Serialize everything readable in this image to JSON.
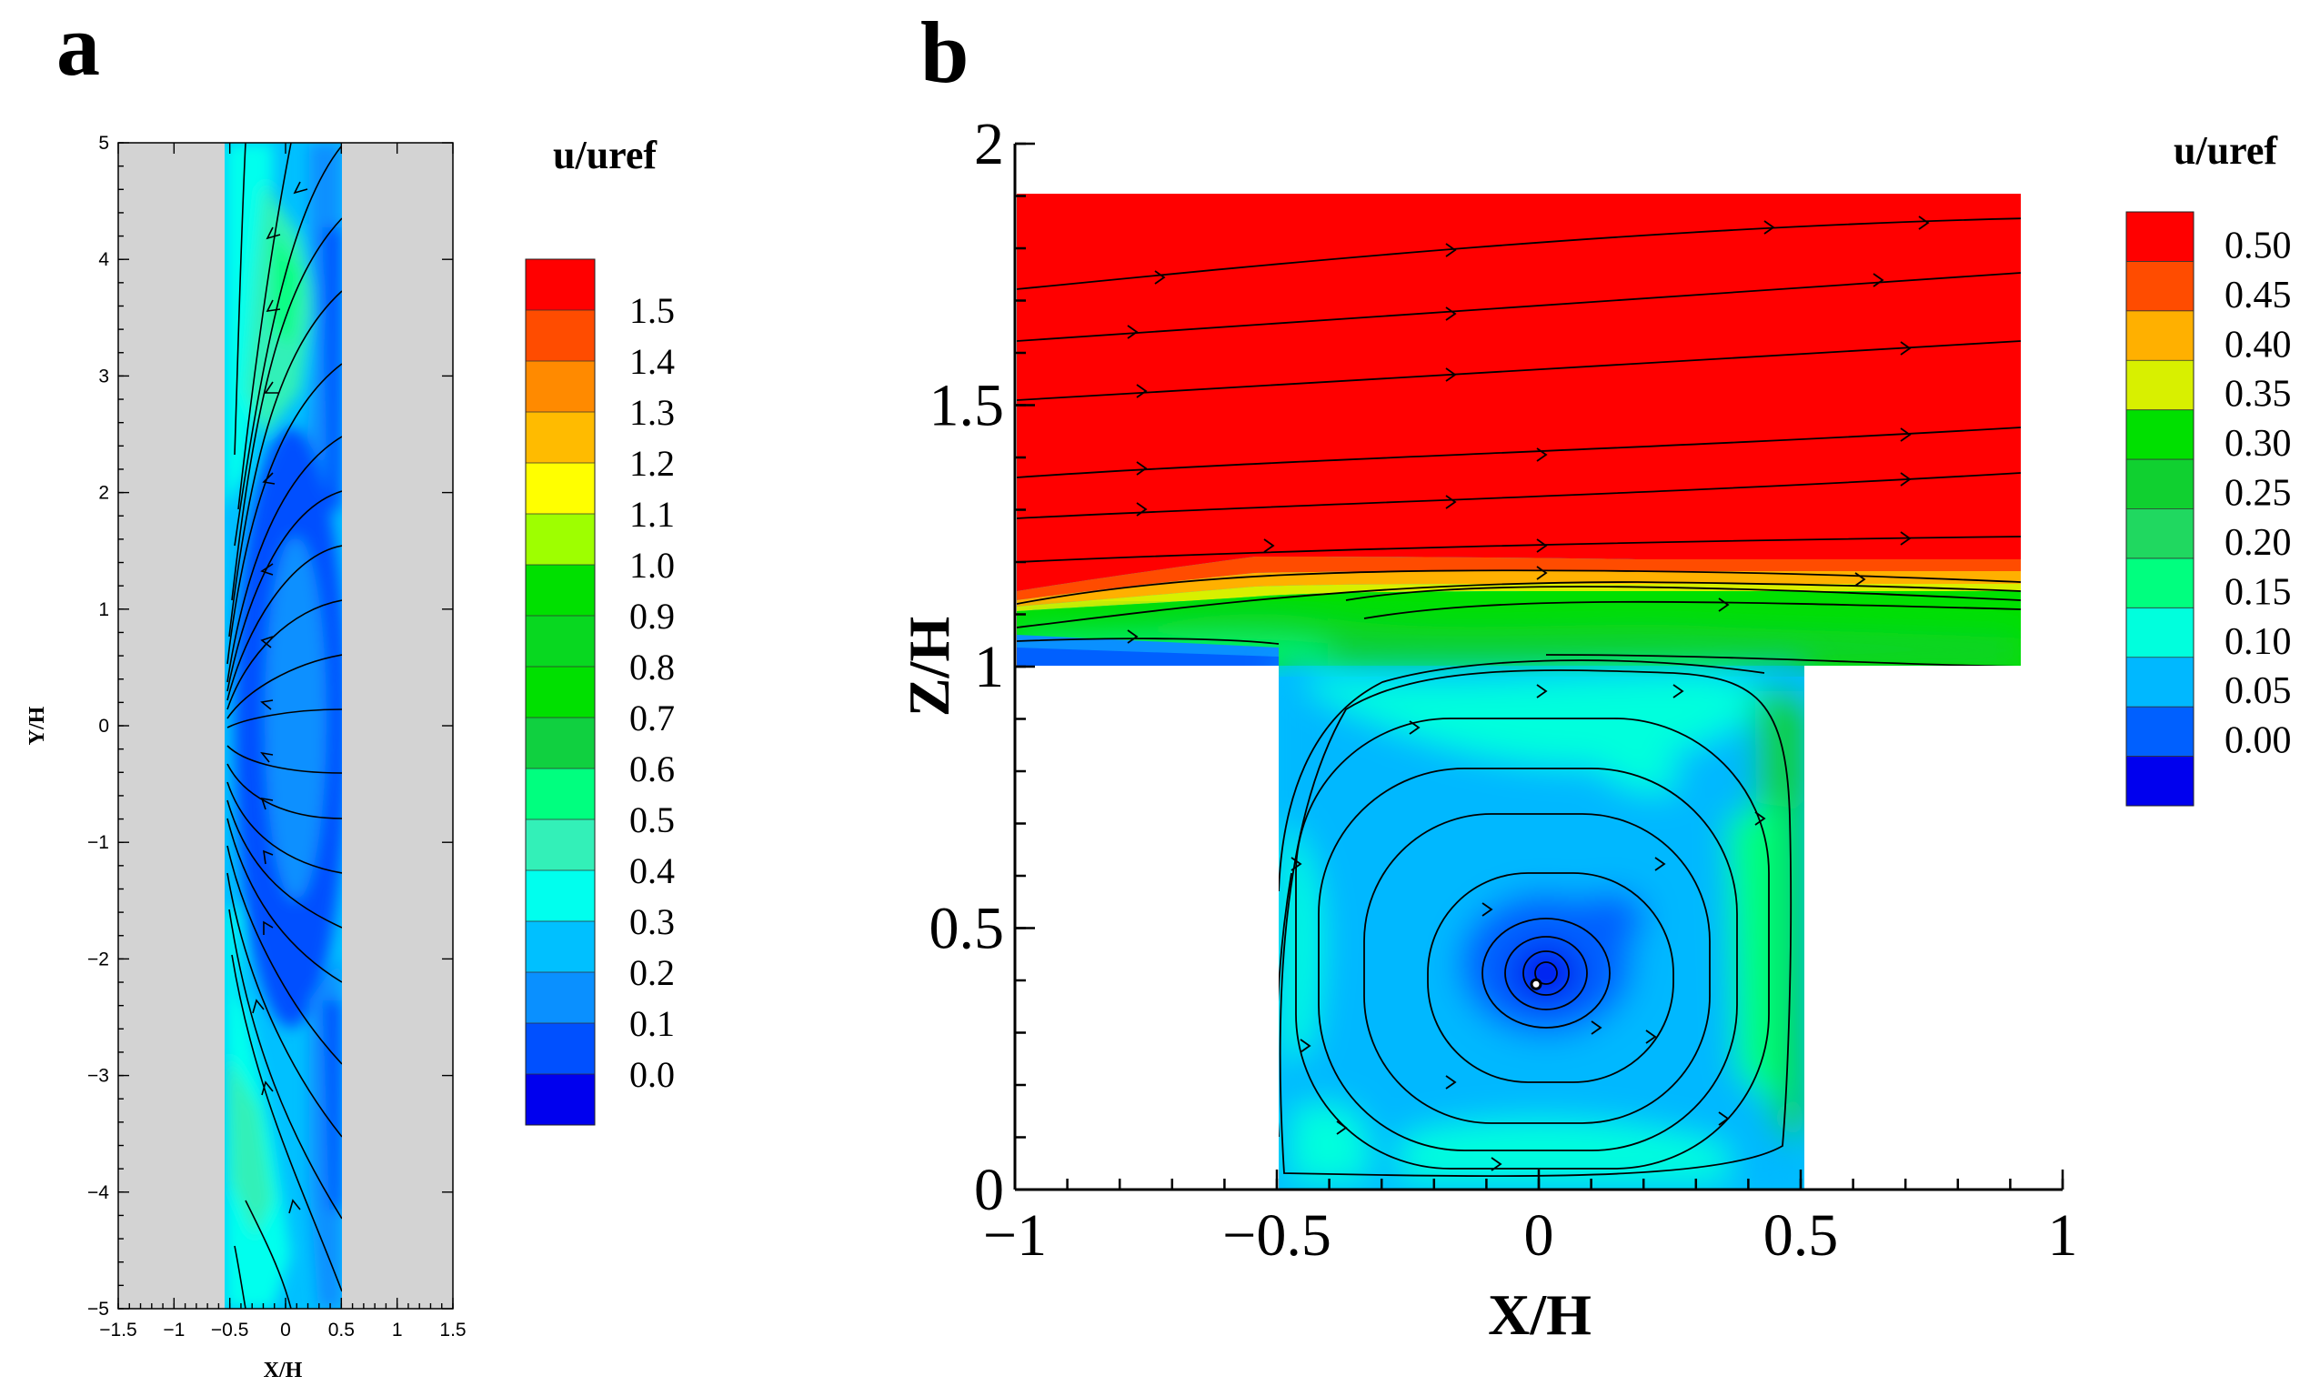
{
  "colors": {
    "red": "#ff0000",
    "orange_red": "#ff4c00",
    "orange": "#ff8a00",
    "amber": "#ffbb00",
    "yellow": "#ffff00",
    "yellow_green": "#9eff00",
    "green": "#00e000",
    "green_mid": "#10d040",
    "aqua_green": "#00ff7f",
    "aquamarine": "#33f0b8",
    "cyan": "#00ffee",
    "sky_blue": "#00c0ff",
    "blue_light": "#0a90ff",
    "blue": "#0050ff",
    "blue_dark": "#0000ee",
    "gray_wall": "#d3d3d3",
    "stream": "#000000"
  },
  "chart_data": [
    {
      "panel": "a",
      "type": "heatmap",
      "title": "",
      "xlabel": "X/H",
      "ylabel": "Y/H",
      "xlim": [
        -1.5,
        1.5
      ],
      "ylim": [
        -5,
        5
      ],
      "x_ticks": [
        "−1.5",
        "−1",
        "−0.5",
        "0",
        "0.5",
        "1",
        "1.5"
      ],
      "x_tick_values": [
        -1.5,
        -1,
        -0.5,
        0,
        0.5,
        1,
        1.5
      ],
      "y_ticks": [
        "−5",
        "−4",
        "−3",
        "−2",
        "−1",
        "0",
        "1",
        "2",
        "3",
        "4",
        "5"
      ],
      "y_tick_values": [
        -5,
        -4,
        -3,
        -2,
        -1,
        0,
        1,
        2,
        3,
        4,
        5
      ],
      "channel_x_range": [
        -0.5,
        0.5
      ],
      "colorbar": {
        "title": "u/uref",
        "labels": [
          "1.5",
          "1.4",
          "1.3",
          "1.2",
          "1.1",
          "1.0",
          "0.9",
          "0.8",
          "0.7",
          "0.6",
          "0.5",
          "0.4",
          "0.3",
          "0.2",
          "0.1",
          "0.0"
        ],
        "levels": [
          1.6,
          1.5,
          1.4,
          1.3,
          1.2,
          1.1,
          1.0,
          0.9,
          0.8,
          0.7,
          0.6,
          0.5,
          0.4,
          0.3,
          0.2,
          0.1,
          0.0
        ],
        "colors": [
          "#ff0000",
          "#ff4c00",
          "#ff8a00",
          "#ffbb00",
          "#ffff00",
          "#9eff00",
          "#00e000",
          "#08d820",
          "#00e000",
          "#10d040",
          "#00ff7f",
          "#33f0b8",
          "#00ffee",
          "#00c0ff",
          "#0a90ff",
          "#0050ff",
          "#0000ee"
        ]
      }
    },
    {
      "panel": "b",
      "type": "heatmap",
      "title": "",
      "xlabel": "X/H",
      "ylabel": "Z/H",
      "xlim": [
        -1,
        1
      ],
      "ylim": [
        0,
        2
      ],
      "x_ticks": [
        "−1",
        "−0.5",
        "0",
        "0.5",
        "1"
      ],
      "x_tick_values": [
        -1,
        -0.5,
        0,
        0.5,
        1
      ],
      "y_ticks": [
        "0",
        "0.5",
        "1",
        "1.5",
        "2"
      ],
      "y_tick_values": [
        0,
        0.5,
        1,
        1.5,
        2
      ],
      "domain": {
        "street_x_range": [
          -0.5,
          0.5
        ],
        "street_depth": 1.0,
        "top_z": 1.9,
        "right_x": 0.91
      },
      "vortex_center": [
        0.0,
        0.41
      ],
      "colorbar": {
        "title": "u/uref",
        "labels": [
          "0.50",
          "0.45",
          "0.40",
          "0.35",
          "0.30",
          "0.25",
          "0.20",
          "0.15",
          "0.10",
          "0.05",
          "0.00"
        ],
        "levels": [
          0.55,
          0.5,
          0.45,
          0.4,
          0.35,
          0.3,
          0.25,
          0.2,
          0.15,
          0.1,
          0.05,
          0.0
        ],
        "colors": [
          "#ff0000",
          "#ff4c00",
          "#ffb000",
          "#d8f000",
          "#00e000",
          "#10d030",
          "#20d860",
          "#00ff7f",
          "#00ffdd",
          "#00b8ff",
          "#0060ff",
          "#0000ee"
        ]
      }
    }
  ]
}
